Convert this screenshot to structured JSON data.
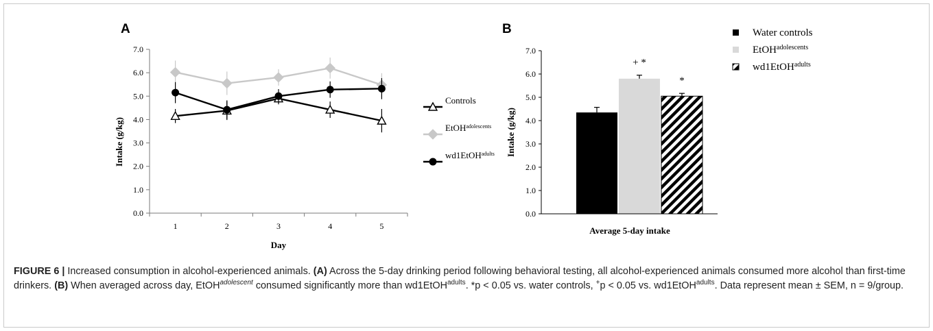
{
  "panel_a": {
    "letter": "A",
    "chart_data": {
      "type": "line",
      "x": [
        1,
        2,
        3,
        4,
        5
      ],
      "xlabel": "Day",
      "ylabel": "Intake (g/kg)",
      "ylim": [
        0,
        7
      ],
      "yticks": [
        "0.0",
        "1.0",
        "2.0",
        "3.0",
        "4.0",
        "5.0",
        "6.0",
        "7.0"
      ],
      "xticks": [
        "1",
        "2",
        "3",
        "4",
        "5"
      ],
      "legend_position": "right",
      "series": [
        {
          "name": "Controls",
          "sup": "",
          "color": "#000000",
          "marker": "triangle-open",
          "values": [
            4.15,
            4.38,
            4.9,
            4.42,
            3.95
          ],
          "errors": [
            0.3,
            0.4,
            0.25,
            0.35,
            0.5
          ]
        },
        {
          "name": "EtOH",
          "sup": "adolescents",
          "color": "#c8c8c8",
          "marker": "diamond",
          "values": [
            6.02,
            5.55,
            5.8,
            6.2,
            5.48
          ],
          "errors": [
            0.5,
            0.5,
            0.35,
            0.45,
            0.5
          ]
        },
        {
          "name": "wd1EtOH",
          "sup": "adults",
          "color": "#000000",
          "marker": "circle",
          "values": [
            5.15,
            4.42,
            5.0,
            5.28,
            5.32
          ],
          "errors": [
            0.45,
            0.4,
            0.3,
            0.35,
            0.45
          ]
        }
      ]
    }
  },
  "panel_b": {
    "letter": "B",
    "chart_data": {
      "type": "bar",
      "xlabel": "Average 5-day intake",
      "ylabel": "Intake (g/kg)",
      "ylim": [
        0,
        7
      ],
      "yticks": [
        "0.0",
        "1.0",
        "2.0",
        "3.0",
        "4.0",
        "5.0",
        "6.0",
        "7.0"
      ],
      "legend_position": "top-right",
      "series": [
        {
          "name": "Water controls",
          "sup": "",
          "value": 4.35,
          "error": 0.22,
          "fill": "solid-black",
          "annotation": ""
        },
        {
          "name": "EtOH",
          "sup": "adolescents",
          "value": 5.8,
          "error": 0.15,
          "fill": "solid-gray",
          "annotation": "+ *"
        },
        {
          "name": "wd1EtOH",
          "sup": "adults",
          "value": 5.05,
          "error": 0.12,
          "fill": "hatched",
          "annotation": "*"
        }
      ]
    }
  },
  "caption": {
    "figure_label": "FIGURE 6 |",
    "title": "Increased consumption in alcohol-experienced animals.",
    "label_a": "(A)",
    "text_a": "Across the 5-day drinking period following behavioral testing, all alcohol-experienced animals consumed more alcohol than first-time drinkers.",
    "label_b": "(B)",
    "text_b_1": "When averaged across day, EtOH",
    "text_b_sup1": "adolescent",
    "text_b_2": "consumed significantly more than wd1EtOH",
    "text_b_sup2": "adults",
    "text_b_3": ". *p < 0.05 vs. water controls, ",
    "text_b_sup3": "+",
    "text_b_4": "p < 0.05 vs. wd1EtOH",
    "text_b_sup4": "adults",
    "text_b_5": ". Data represent mean ± SEM, n = 9/group."
  }
}
